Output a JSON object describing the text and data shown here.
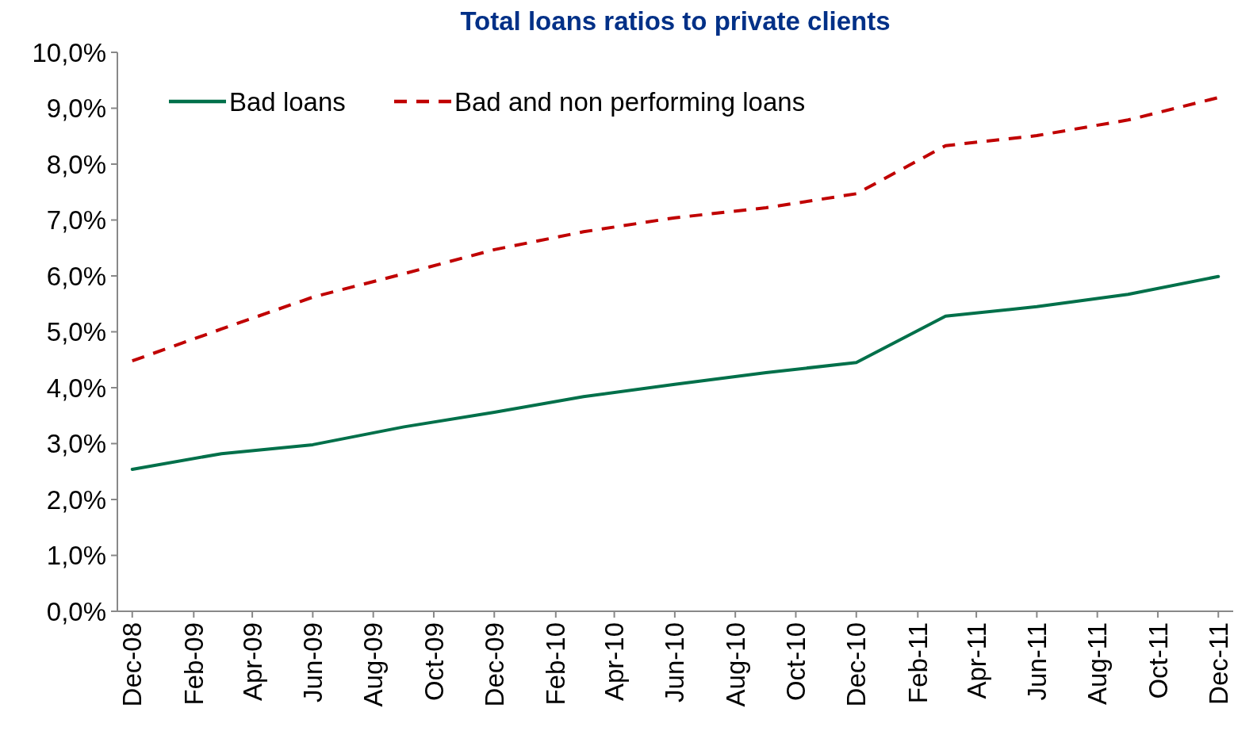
{
  "chart_data": {
    "type": "line",
    "title": "Total loans ratios to private clients",
    "x": [
      "2008-12",
      "2009-03",
      "2009-06",
      "2009-09",
      "2009-12",
      "2010-03",
      "2010-06",
      "2010-09",
      "2010-12",
      "2011-03",
      "2011-06",
      "2011-09",
      "2011-12"
    ],
    "series": [
      {
        "name": "Bad loans",
        "color": "#00704a",
        "line_style": "solid",
        "values": [
          2.54,
          2.82,
          2.98,
          3.3,
          3.56,
          3.84,
          4.06,
          4.27,
          4.45,
          5.28,
          5.45,
          5.67,
          5.99
        ]
      },
      {
        "name": "Bad and non performing loans",
        "color": "#c00000",
        "line_style": "dashed",
        "values": [
          4.48,
          5.05,
          5.62,
          6.04,
          6.47,
          6.79,
          7.04,
          7.22,
          7.47,
          8.33,
          8.51,
          8.79,
          9.19
        ]
      }
    ],
    "xlim": [
      "2008-11-16",
      "2011-12-16"
    ],
    "xticks": [
      {
        "value": "2008-12",
        "label": "Dec-08"
      },
      {
        "value": "2009-02",
        "label": "Feb-09"
      },
      {
        "value": "2009-04",
        "label": "Apr-09"
      },
      {
        "value": "2009-06",
        "label": "Jun-09"
      },
      {
        "value": "2009-08",
        "label": "Aug-09"
      },
      {
        "value": "2009-10",
        "label": "Oct-09"
      },
      {
        "value": "2009-12",
        "label": "Dec-09"
      },
      {
        "value": "2010-02",
        "label": "Feb-10"
      },
      {
        "value": "2010-04",
        "label": "Apr-10"
      },
      {
        "value": "2010-06",
        "label": "Jun-10"
      },
      {
        "value": "2010-08",
        "label": "Aug-10"
      },
      {
        "value": "2010-10",
        "label": "Oct-10"
      },
      {
        "value": "2010-12",
        "label": "Dec-10"
      },
      {
        "value": "2011-02",
        "label": "Feb-11"
      },
      {
        "value": "2011-04",
        "label": "Apr-11"
      },
      {
        "value": "2011-06",
        "label": "Jun-11"
      },
      {
        "value": "2011-08",
        "label": "Aug-11"
      },
      {
        "value": "2011-10",
        "label": "Oct-11"
      },
      {
        "value": "2011-12",
        "label": "Dec-11"
      }
    ],
    "ylim": [
      0,
      10
    ],
    "yticks": [
      {
        "value": 0,
        "label": "0,0%"
      },
      {
        "value": 1,
        "label": "1,0%"
      },
      {
        "value": 2,
        "label": "2,0%"
      },
      {
        "value": 3,
        "label": "3,0%"
      },
      {
        "value": 4,
        "label": "4,0%"
      },
      {
        "value": 5,
        "label": "5,0%"
      },
      {
        "value": 6,
        "label": "6,0%"
      },
      {
        "value": 7,
        "label": "7,0%"
      },
      {
        "value": 8,
        "label": "8,0%"
      },
      {
        "value": 9,
        "label": "9,0%"
      },
      {
        "value": 10,
        "label": "10,0%"
      }
    ],
    "legend": "top left",
    "marker": "none",
    "grid": false
  }
}
